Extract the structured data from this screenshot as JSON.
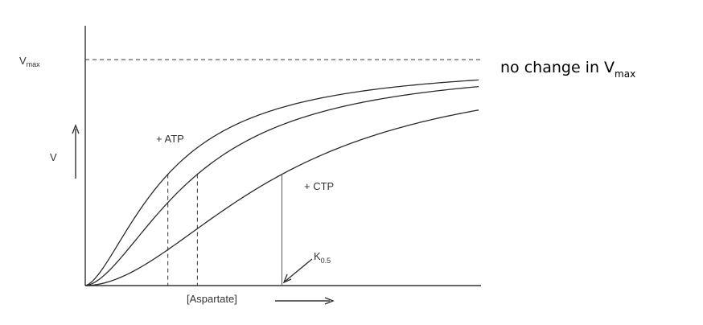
{
  "chart_data": {
    "type": "line",
    "ylabel_prefix": "V",
    "ymax_label": {
      "main": "V",
      "sub": "max"
    },
    "xlabel": "[Aspartate]",
    "annotation": {
      "main": "K",
      "sub": "0.5"
    },
    "note": {
      "text": "no change in V",
      "sub": "max"
    },
    "vmax": 1.0,
    "xlim": [
      0,
      10
    ],
    "ylim": [
      0,
      1.15
    ],
    "series": [
      {
        "name": "+ ATP",
        "label": "+ ATP",
        "vmax": 1.0,
        "k05": 2.1,
        "hill": 1.6,
        "k05_marker": "dashed"
      },
      {
        "name": "",
        "label": "",
        "vmax": 1.0,
        "k05": 2.85,
        "hill": 1.7,
        "k05_marker": "dashed"
      },
      {
        "name": "+ CTP",
        "label": "+ CTP",
        "vmax": 1.0,
        "k05": 5.0,
        "hill": 1.9,
        "k05_marker": "solid"
      }
    ]
  }
}
